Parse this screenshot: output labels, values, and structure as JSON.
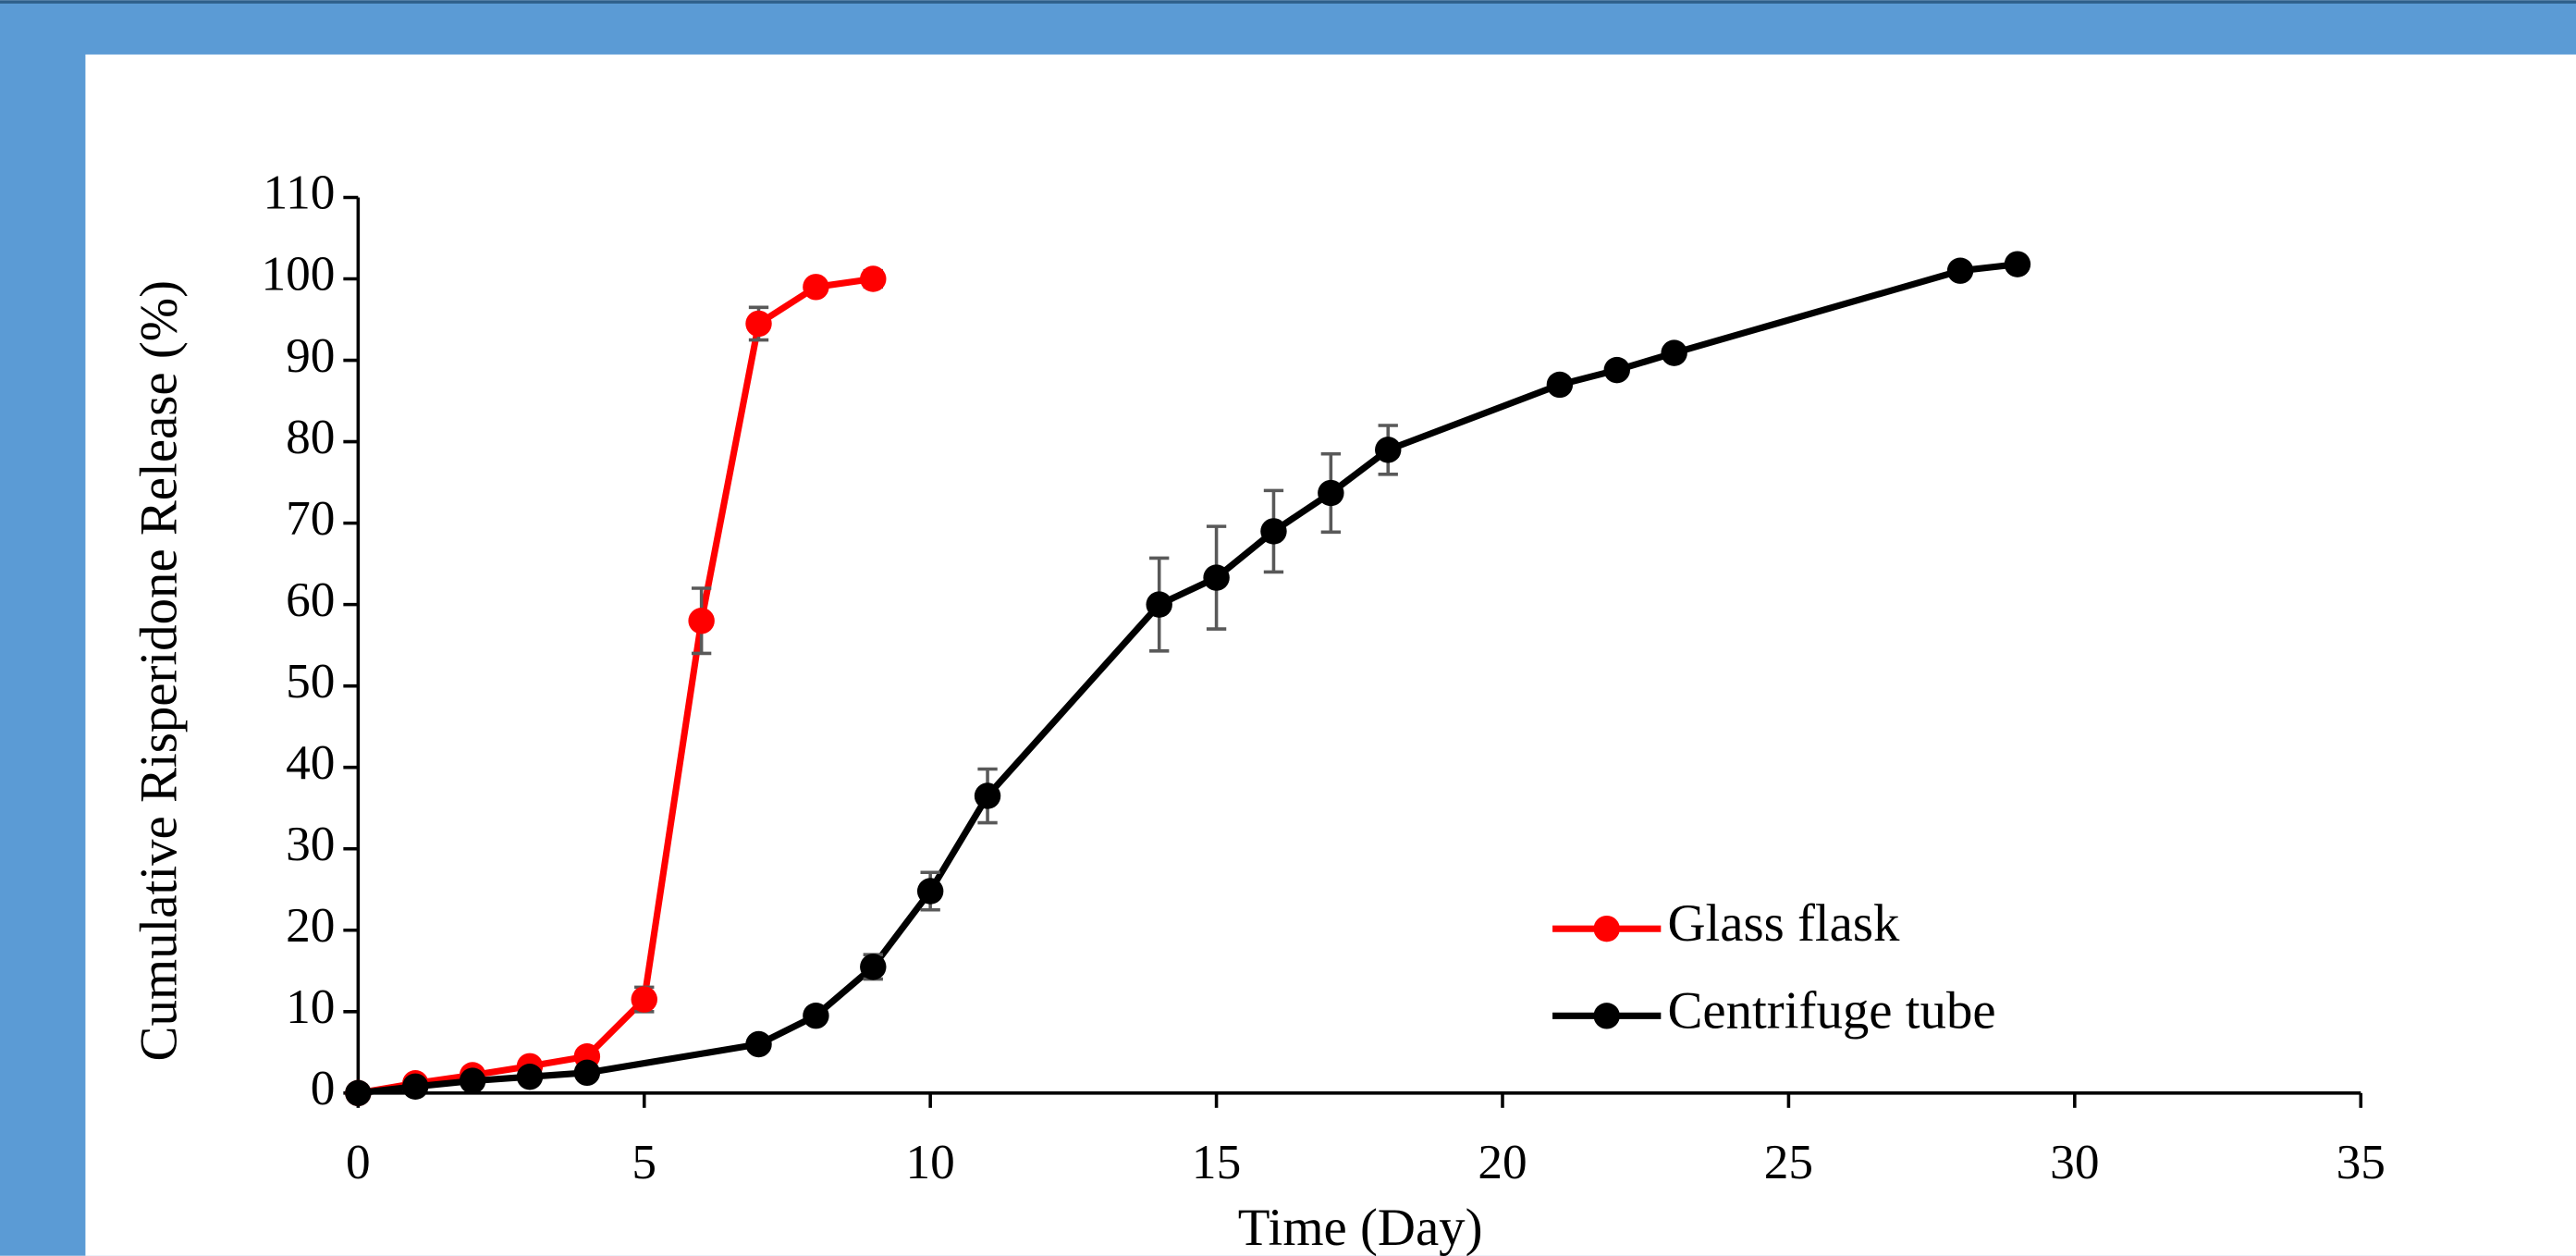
{
  "chart_data": {
    "type": "line",
    "xlabel": "Time (Day)",
    "ylabel": "Cumulative Risperidone Release (%)",
    "xlim": [
      0,
      35
    ],
    "xticks": [
      0,
      5,
      10,
      15,
      20,
      25,
      30,
      35
    ],
    "ylim": [
      0,
      110
    ],
    "yticks": [
      0,
      10,
      20,
      30,
      40,
      50,
      60,
      70,
      80,
      90,
      100,
      110
    ],
    "legend": "lower right",
    "series": [
      {
        "name": "Glass flask",
        "color": "#ff0000",
        "x": [
          0,
          1,
          2,
          3,
          4,
          5,
          6,
          7,
          8,
          9
        ],
        "values": [
          0,
          1.2,
          2.2,
          3.3,
          4.5,
          11.5,
          58,
          94.5,
          99,
          100
        ],
        "errors": [
          0,
          0,
          0,
          0,
          0,
          1.5,
          4,
          2,
          0,
          1
        ]
      },
      {
        "name": "Centrifuge tube",
        "color": "#000000",
        "x": [
          0,
          1,
          2,
          3,
          4,
          7,
          8,
          9,
          10,
          11,
          14,
          15,
          16,
          17,
          18,
          21,
          22,
          23,
          28,
          29
        ],
        "values": [
          0,
          0.8,
          1.5,
          2,
          2.5,
          6,
          9.5,
          15.5,
          24.8,
          36.5,
          60,
          63.3,
          69,
          73.7,
          79,
          87,
          88.8,
          90.9,
          101,
          101.8
        ],
        "errors": [
          0,
          0,
          0,
          0,
          0,
          0,
          0,
          1.5,
          2.3,
          3.3,
          5.7,
          6.3,
          5,
          4.8,
          3,
          0,
          0,
          0,
          0,
          0
        ]
      }
    ]
  }
}
